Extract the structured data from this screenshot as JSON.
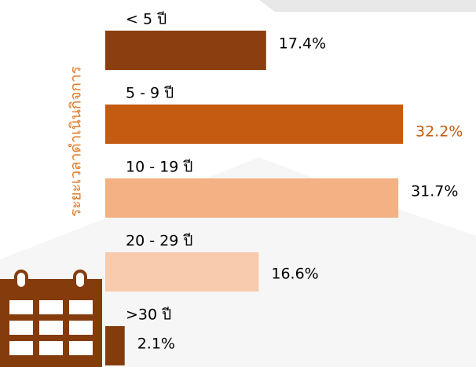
{
  "chart_data": {
    "type": "bar",
    "orientation": "horizontal",
    "y_axis_label": "ระยะเวลาดำเนินกิจการ",
    "categories": [
      "< 5 ปี",
      "5 - 9 ปี",
      "10 - 19 ปี",
      "20 - 29 ปี",
      ">30 ปี"
    ],
    "values": [
      17.4,
      32.2,
      31.7,
      16.6,
      2.1
    ],
    "value_labels": [
      "17.4%",
      "32.2%",
      "31.7%",
      "16.6%",
      "2.1%"
    ],
    "colors": [
      "#8b3e0f",
      "#c55a11",
      "#f4b183",
      "#f8cbad",
      "#843c0c"
    ],
    "value_label_colors": [
      "#000000",
      "#c55a11",
      "#000000",
      "#000000",
      "#000000"
    ],
    "axis_label_color": "#e07b2a"
  }
}
